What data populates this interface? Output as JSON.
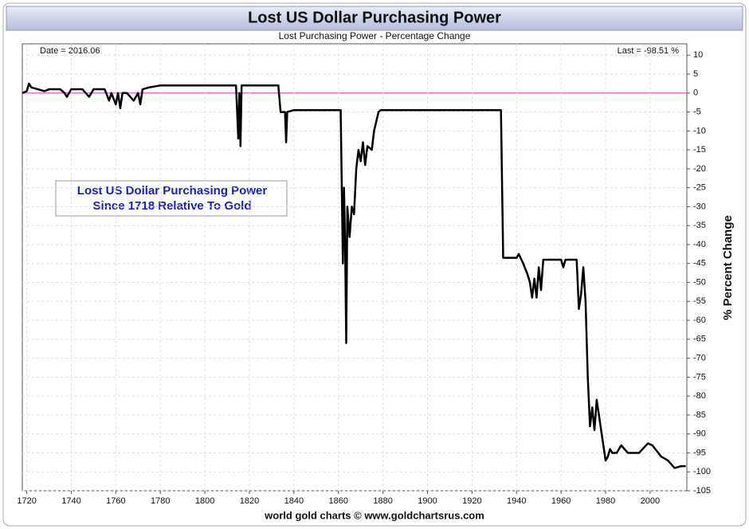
{
  "chart_data": {
    "type": "line",
    "title": "Lost US Dollar Purchasing Power",
    "subtitle": "Lost Purchasing Power - Percentage Change",
    "date_label": "Date = 2016.06",
    "last_label": "Last = -98.51 %",
    "annotation": [
      "Lost US Dollar Purchasing Power",
      "Since 1718 Relative To Gold"
    ],
    "y_label": "% Percent Change",
    "footer": "world gold charts © www.goldchartsrus.com",
    "xlim": [
      1718,
      2016.5
    ],
    "xticks": [
      1720,
      1740,
      1760,
      1780,
      1800,
      1820,
      1840,
      1860,
      1880,
      1900,
      1920,
      1940,
      1960,
      1980,
      2000
    ],
    "ylim": [
      -105,
      13
    ],
    "yticks": [
      10,
      5,
      0,
      -5,
      -10,
      -15,
      -20,
      -25,
      -30,
      -35,
      -40,
      -45,
      -50,
      -55,
      -60,
      -65,
      -70,
      -75,
      -80,
      -85,
      -90,
      -95,
      -100,
      -105
    ],
    "grid": true,
    "zero_line_color": "#e040c0",
    "series": [
      {
        "color": "#000000",
        "x": [
          1718,
          1720,
          1721,
          1722,
          1725,
          1728,
          1730,
          1735,
          1737,
          1738,
          1740,
          1745,
          1748,
          1750,
          1755,
          1757,
          1758,
          1760,
          1761,
          1762,
          1763,
          1765,
          1768,
          1770,
          1771,
          1772,
          1775,
          1780,
          1790,
          1800,
          1814,
          1815,
          1815.5,
          1816,
          1816.5,
          1820,
          1833,
          1834,
          1836,
          1836.5,
          1837,
          1840,
          1850,
          1861,
          1862,
          1862.5,
          1863,
          1863.5,
          1864,
          1865,
          1866,
          1867,
          1868,
          1869,
          1870,
          1871,
          1872,
          1873,
          1875,
          1876,
          1878,
          1879,
          1900,
          1933,
          1934,
          1940,
          1941,
          1943,
          1945,
          1946,
          1947,
          1948,
          1949,
          1950,
          1951,
          1952,
          1955,
          1960,
          1961,
          1962,
          1967,
          1968,
          1969,
          1970,
          1971,
          1972,
          1973,
          1974,
          1975,
          1976,
          1978,
          1979,
          1980,
          1981,
          1982,
          1983,
          1985,
          1987,
          1990,
          1995,
          1999,
          2001,
          2005,
          2008,
          2011,
          2014,
          2016
        ],
        "values": [
          0,
          0.5,
          2.5,
          1.5,
          1,
          0.5,
          1,
          1,
          0,
          -1,
          1,
          1,
          -1,
          1,
          1,
          -2,
          0,
          -3,
          0,
          -4,
          0,
          0,
          -2,
          0,
          -3,
          1,
          1.5,
          2,
          2,
          2,
          2,
          -12,
          0,
          -14,
          2,
          2,
          2,
          -5,
          -5,
          -13,
          -5,
          -4.5,
          -4.5,
          -4.5,
          -45,
          -25,
          -40,
          -66,
          -30,
          -38,
          -30,
          -32,
          -20,
          -15,
          -18,
          -13,
          -19,
          -14,
          -15,
          -10,
          -5,
          -4.5,
          -4.5,
          -4.5,
          -43.5,
          -43.5,
          -42.5,
          -45,
          -48,
          -50,
          -54,
          -49,
          -54,
          -46,
          -52,
          -44,
          -44,
          -44,
          -46,
          -44,
          -44,
          -57,
          -53,
          -46,
          -55,
          -75,
          -88,
          -83,
          -89,
          -81,
          -89,
          -93,
          -97,
          -96,
          -94,
          -95,
          -95,
          -93,
          -95,
          -95,
          -92.5,
          -93,
          -96,
          -97,
          -99,
          -98.5,
          -98.51
        ]
      }
    ]
  }
}
